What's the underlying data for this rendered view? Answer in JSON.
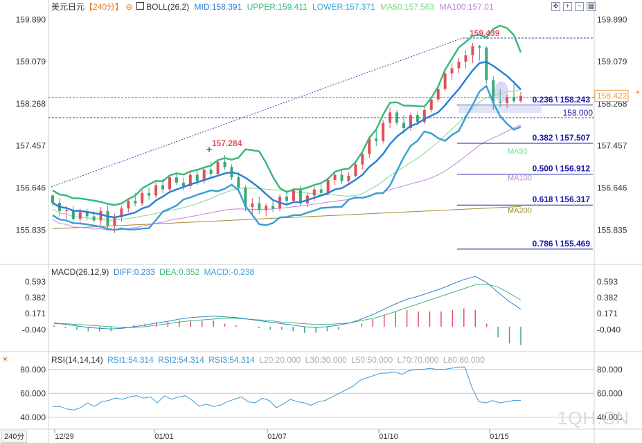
{
  "header": {
    "symbol": "美元日元",
    "period": "【240分】",
    "indicator": "BOLL(26,2)",
    "mid": "MID:158.391",
    "upper": "UPPER:159.411",
    "lower": "LOWER:157.371",
    "ma50": "MA50:157.563",
    "ma100": "MA100:157.01"
  },
  "macd_header": {
    "name": "MACD(26,12,9)",
    "diff": "DIFF:0.233",
    "dea": "DEA:0.352",
    "macd": "MACD:-0.238"
  },
  "rsi_header": {
    "name": "RSI(14,14,14)",
    "rsi1": "RSI1:54.314",
    "rsi2": "RSI2:54.314",
    "rsi3": "RSI3:54.314",
    "l20": "L20:20.000",
    "l30": "L30:30.000",
    "l50": "L50:50.000",
    "l70": "L70:70.000",
    "l80": "L80:80.000"
  },
  "period_button": "240分",
  "watermark": "1QH.CN",
  "colors": {
    "up": "#e0505a",
    "down": "#3aa879",
    "boll_mid": "#2a7fd8",
    "boll_upper": "#3bb97a",
    "boll_lower": "#3aa0d8",
    "ma50": "#7fd88a",
    "ma100": "#c484d8",
    "ma200": "#a08a30",
    "diff": "#2f84d0",
    "dea": "#3bb97a",
    "rsi": "#3a98d6",
    "fib": "#1a1aa8",
    "price_tag": "#f0a040"
  },
  "chart_data": [
    {
      "type": "candlestick",
      "panel": "price",
      "y_ticks": [
        "159.890",
        "159.079",
        "158.268",
        "157.457",
        "156.646",
        "155.835"
      ],
      "x_ticks": [
        "12/29",
        "01/01",
        "01/07",
        "01/10",
        "01/15"
      ],
      "ylim": [
        155.2,
        160.0
      ],
      "current_price": "158.422",
      "high_label": "159.439",
      "marked_high": "157.284",
      "level_label": "158.000",
      "fib_levels": [
        {
          "label": "0.236 \\ 158.243",
          "value": 158.243
        },
        {
          "label": "0.382 \\ 157.507",
          "value": 157.507
        },
        {
          "label": "0.500 \\ 156.912",
          "value": 156.912
        },
        {
          "label": "0.618 \\ 156.317",
          "value": 156.317
        },
        {
          "label": "0.786 \\ 155.469",
          "value": 155.469
        }
      ],
      "ma_labels": [
        "MA50",
        "MA100",
        "MA200"
      ],
      "candles": [
        [
          156.5,
          156.52,
          156.3,
          156.36
        ],
        [
          156.36,
          156.45,
          156.1,
          156.2
        ],
        [
          156.2,
          156.3,
          156.05,
          156.22
        ],
        [
          156.22,
          156.3,
          156.0,
          156.05
        ],
        [
          156.05,
          156.25,
          155.95,
          156.18
        ],
        [
          156.18,
          156.25,
          156.02,
          156.1
        ],
        [
          156.1,
          156.2,
          155.98,
          156.02
        ],
        [
          156.02,
          156.28,
          155.92,
          156.2
        ],
        [
          156.2,
          156.3,
          155.85,
          155.92
        ],
        [
          155.92,
          156.15,
          155.78,
          156.08
        ],
        [
          156.08,
          156.3,
          156.0,
          156.25
        ],
        [
          156.25,
          156.45,
          156.18,
          156.4
        ],
        [
          156.4,
          156.55,
          156.3,
          156.35
        ],
        [
          156.35,
          156.6,
          156.3,
          156.55
        ],
        [
          156.55,
          156.65,
          156.42,
          156.5
        ],
        [
          156.5,
          156.75,
          156.45,
          156.7
        ],
        [
          156.7,
          156.82,
          156.55,
          156.62
        ],
        [
          156.62,
          156.9,
          156.58,
          156.85
        ],
        [
          156.85,
          156.95,
          156.7,
          156.75
        ],
        [
          156.75,
          156.85,
          156.6,
          156.68
        ],
        [
          156.68,
          156.95,
          156.62,
          156.9
        ],
        [
          156.9,
          157.0,
          156.7,
          156.78
        ],
        [
          156.78,
          157.05,
          156.72,
          157.0
        ],
        [
          157.0,
          157.15,
          156.85,
          156.92
        ],
        [
          156.92,
          157.2,
          156.88,
          157.15
        ],
        [
          157.15,
          157.28,
          157.0,
          157.05
        ],
        [
          157.05,
          157.1,
          156.8,
          156.85
        ],
        [
          156.85,
          156.95,
          156.6,
          156.65
        ],
        [
          156.65,
          156.7,
          156.2,
          156.28
        ],
        [
          156.28,
          156.45,
          156.1,
          156.35
        ],
        [
          156.35,
          156.48,
          156.15,
          156.22
        ],
        [
          156.22,
          156.35,
          156.1,
          156.3
        ],
        [
          156.3,
          156.42,
          156.18,
          156.25
        ],
        [
          156.25,
          156.52,
          156.2,
          156.48
        ],
        [
          156.48,
          156.6,
          156.35,
          156.4
        ],
        [
          156.4,
          156.65,
          156.38,
          156.6
        ],
        [
          156.6,
          156.7,
          156.3,
          156.35
        ],
        [
          156.35,
          156.55,
          156.28,
          156.5
        ],
        [
          156.5,
          156.68,
          156.4,
          156.62
        ],
        [
          156.62,
          156.72,
          156.48,
          156.55
        ],
        [
          156.55,
          156.85,
          156.5,
          156.8
        ],
        [
          156.8,
          156.95,
          156.7,
          156.9
        ],
        [
          156.9,
          157.0,
          156.72,
          156.78
        ],
        [
          156.78,
          156.95,
          156.72,
          156.88
        ],
        [
          156.88,
          157.15,
          156.85,
          157.1
        ],
        [
          157.1,
          157.35,
          157.0,
          157.3
        ],
        [
          157.3,
          157.65,
          157.22,
          157.6
        ],
        [
          157.6,
          157.8,
          157.45,
          157.55
        ],
        [
          157.55,
          157.95,
          157.5,
          157.9
        ],
        [
          157.9,
          158.2,
          157.8,
          158.1
        ],
        [
          158.1,
          158.15,
          157.85,
          157.9
        ],
        [
          157.9,
          158.05,
          157.7,
          157.8
        ],
        [
          157.8,
          158.1,
          157.75,
          158.05
        ],
        [
          158.05,
          158.12,
          157.85,
          157.92
        ],
        [
          157.92,
          158.2,
          157.88,
          158.15
        ],
        [
          158.15,
          158.4,
          158.1,
          158.35
        ],
        [
          158.35,
          158.62,
          158.3,
          158.55
        ],
        [
          158.55,
          158.9,
          158.5,
          158.85
        ],
        [
          158.85,
          159.05,
          158.72,
          158.95
        ],
        [
          158.95,
          159.15,
          158.85,
          159.08
        ],
        [
          159.08,
          159.3,
          158.95,
          159.2
        ],
        [
          159.2,
          159.44,
          159.05,
          159.38
        ],
        [
          159.38,
          159.4,
          159.1,
          159.35
        ],
        [
          159.35,
          159.38,
          158.65,
          158.72
        ],
        [
          158.72,
          158.8,
          158.15,
          158.3
        ],
        [
          158.3,
          158.55,
          158.2,
          158.28
        ],
        [
          158.28,
          158.45,
          158.18,
          158.4
        ],
        [
          158.4,
          158.65,
          158.28,
          158.32
        ],
        [
          158.32,
          158.5,
          158.28,
          158.42
        ]
      ]
    },
    {
      "type": "bar+line",
      "panel": "macd",
      "y_ticks": [
        "0.593",
        "0.382",
        "0.171",
        "-0.040"
      ],
      "ylim": [
        -0.3,
        0.7
      ],
      "series": [
        {
          "name": "DIFF",
          "values": [
            0.05,
            0.03,
            0.01,
            -0.01,
            -0.02,
            -0.03,
            -0.02,
            0.0,
            0.02,
            0.05,
            0.07,
            0.1,
            0.12,
            0.13,
            0.14,
            0.13,
            0.12,
            0.1,
            0.08,
            0.06,
            0.04,
            0.02,
            0.0,
            -0.01,
            0.0,
            0.02,
            0.05,
            0.1,
            0.16,
            0.23,
            0.3,
            0.36,
            0.4,
            0.45,
            0.5,
            0.56,
            0.62,
            0.66,
            0.58,
            0.45,
            0.33,
            0.23
          ]
        },
        {
          "name": "DEA",
          "values": [
            0.04,
            0.04,
            0.03,
            0.02,
            0.01,
            0.0,
            -0.01,
            -0.01,
            0.0,
            0.02,
            0.04,
            0.06,
            0.08,
            0.09,
            0.1,
            0.11,
            0.11,
            0.1,
            0.09,
            0.08,
            0.06,
            0.05,
            0.04,
            0.03,
            0.03,
            0.04,
            0.05,
            0.08,
            0.11,
            0.15,
            0.2,
            0.25,
            0.3,
            0.35,
            0.4,
            0.45,
            0.5,
            0.55,
            0.56,
            0.52,
            0.44,
            0.35
          ]
        },
        {
          "name": "MACD",
          "values": [
            0.02,
            -0.02,
            -0.04,
            -0.06,
            -0.06,
            -0.06,
            -0.02,
            0.02,
            0.04,
            0.06,
            0.06,
            0.08,
            0.08,
            0.08,
            0.08,
            0.04,
            0.02,
            0.0,
            -0.02,
            -0.04,
            -0.04,
            -0.06,
            -0.08,
            -0.08,
            -0.06,
            -0.04,
            0.0,
            0.04,
            0.1,
            0.16,
            0.2,
            0.22,
            0.2,
            0.2,
            0.2,
            0.22,
            0.24,
            0.22,
            0.04,
            -0.14,
            -0.22,
            -0.24
          ]
        }
      ]
    },
    {
      "type": "line",
      "panel": "rsi",
      "y_ticks": [
        "80.000",
        "60.000",
        "40.000"
      ],
      "ylim": [
        30,
        88
      ],
      "series": [
        {
          "name": "RSI1",
          "values": [
            49,
            49,
            47,
            46,
            48,
            52,
            49,
            53,
            54,
            56,
            55,
            57,
            58,
            56,
            57,
            52,
            58,
            55,
            57,
            58,
            54,
            49,
            51,
            49,
            50,
            53,
            55,
            57,
            53,
            52,
            56,
            54,
            48,
            51,
            55,
            53,
            52,
            50,
            53,
            54,
            57,
            60,
            63,
            66,
            71,
            73,
            75,
            77,
            77,
            78,
            76,
            79,
            80,
            80,
            81,
            80,
            80,
            81,
            82,
            82,
            65,
            53,
            52,
            54,
            52,
            53,
            54,
            54
          ]
        }
      ]
    }
  ]
}
